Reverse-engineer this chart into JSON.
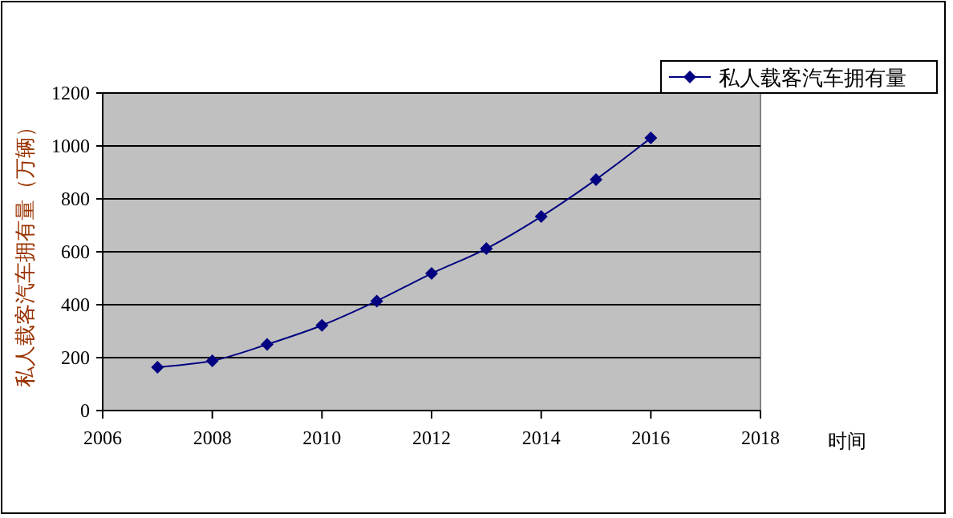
{
  "chart_data": {
    "type": "line",
    "xlabel": "时间",
    "ylabel": "私人载客汽车拥有量（万辆）",
    "x": [
      2007,
      2008,
      2009,
      2010,
      2011,
      2012,
      2013,
      2014,
      2015,
      2016
    ],
    "series": [
      {
        "name": "私人载客汽车拥有量",
        "color": "#000080",
        "values": [
          164,
          188,
          250,
          322,
          414,
          518,
          612,
          733,
          873,
          1030
        ]
      }
    ],
    "xlim": [
      2006,
      2018
    ],
    "xticks": [
      2006,
      2008,
      2010,
      2012,
      2014,
      2016,
      2018
    ],
    "ylim": [
      0,
      1200
    ],
    "yticks": [
      0,
      200,
      400,
      600,
      800,
      1000,
      1200
    ],
    "grid": "y",
    "legend": "top right",
    "marker": "diamond",
    "line_style": "solid"
  }
}
